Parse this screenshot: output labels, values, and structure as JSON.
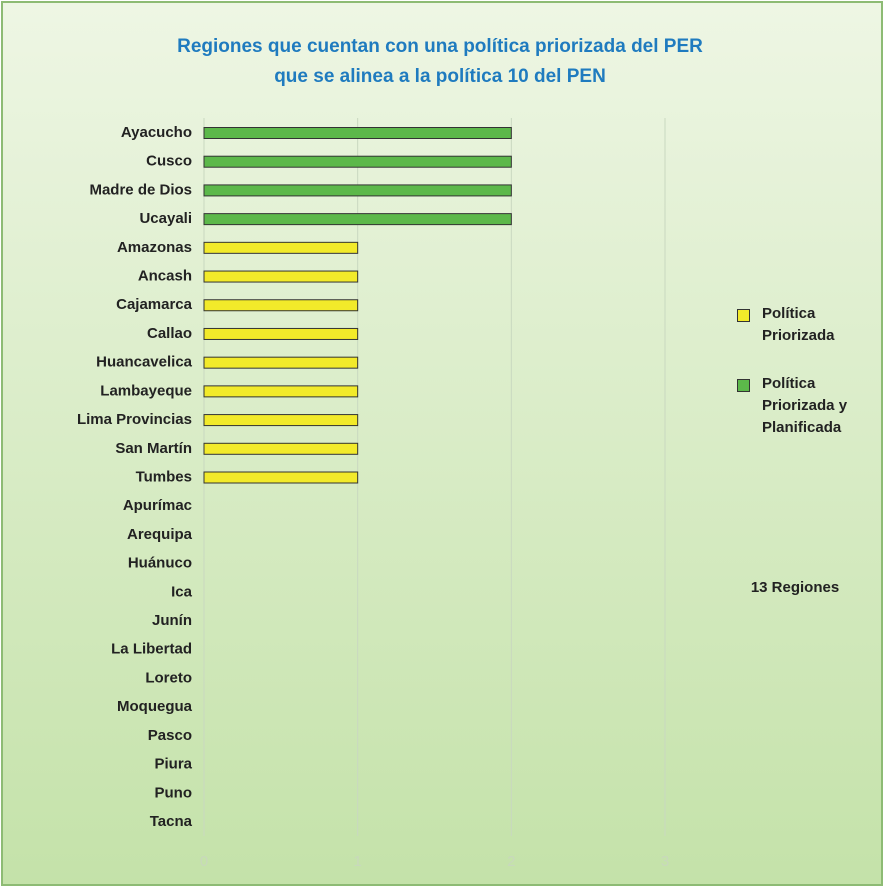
{
  "chart_data": {
    "type": "barh",
    "title": "Regiones que cuentan con una política priorizada del PER",
    "subtitle": "que se alinea a la política 10 del PEN",
    "categories": [
      "Ayacucho",
      "Cusco",
      "Madre de Dios",
      "Ucayali",
      "Amazonas",
      "Ancash",
      "Cajamarca",
      "Callao",
      "Huancavelica",
      "Lambayeque",
      "Lima Provincias",
      "San Martín",
      "Tumbes",
      "Apurímac",
      "Arequipa",
      "Huánuco",
      "Ica",
      "Junín",
      "La Libertad",
      "Loreto",
      "Moquegua",
      "Pasco",
      "Piura",
      "Puno",
      "Tacna"
    ],
    "series": [
      {
        "name": "Política Priorizada",
        "color": "#f2ea2a",
        "values": [
          null,
          null,
          null,
          null,
          1,
          1,
          1,
          1,
          1,
          1,
          1,
          1,
          1,
          0,
          0,
          0,
          0,
          0,
          0,
          0,
          0,
          0,
          0,
          0,
          0
        ]
      },
      {
        "name": "Política Priorizada y Planificada",
        "color": "#5cb84a",
        "values": [
          2,
          2,
          2,
          2,
          null,
          null,
          null,
          null,
          null,
          null,
          null,
          null,
          null,
          null,
          null,
          null,
          null,
          null,
          null,
          null,
          null,
          null,
          null,
          null,
          null
        ]
      }
    ],
    "xlim": [
      0,
      3
    ],
    "xticks": [
      0,
      1,
      2,
      3
    ],
    "grid": true,
    "legend": "right",
    "annotations": [
      "13 Regiones"
    ]
  }
}
